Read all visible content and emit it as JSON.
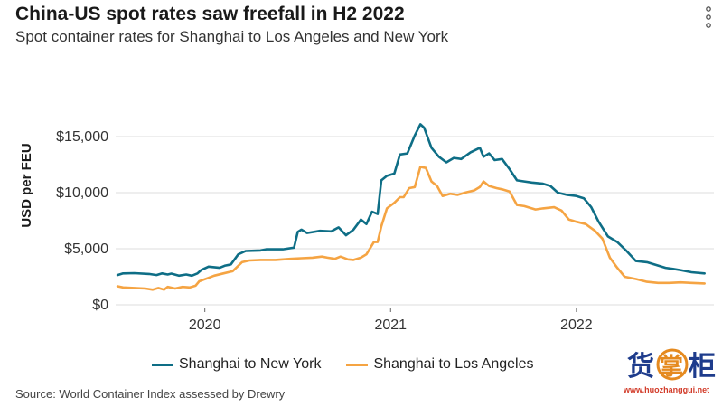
{
  "header": {
    "title": "China-US spot rates saw freefall in H2 2022",
    "subtitle": "Spot container rates for Shanghai to Los Angeles and New York"
  },
  "menu": {
    "icon": "vertical-dots-icon"
  },
  "watermark": {
    "text": "www.huozhanggui.net",
    "logo": "货掌柜"
  },
  "source": "Source: World Container Index assessed by Drewry",
  "colors": {
    "new_york": "#0e6e86",
    "los_angeles": "#f5a443",
    "gridline": "#dddddd",
    "text": "#333333"
  },
  "chart_data": {
    "type": "line",
    "title": "China-US spot rates saw freefall in H2 2022",
    "subtitle": "Spot container rates for Shanghai to Los Angeles and New York",
    "xlabel": "",
    "ylabel": "USD per FEU",
    "xlim": [
      2019.52,
      2022.74
    ],
    "ylim": [
      0,
      17500
    ],
    "y_ticks": [
      0,
      5000,
      10000,
      15000
    ],
    "y_tick_labels": [
      "$0",
      "$5,000",
      "$10,000",
      "$15,000"
    ],
    "x_ticks": [
      2020,
      2021,
      2022
    ],
    "x_tick_labels": [
      "2020",
      "2021",
      "2022"
    ],
    "grid": "horizontal",
    "legend": "bottom",
    "series": [
      {
        "name": "Shanghai to New York",
        "color": "#0e6e86",
        "points": [
          [
            2019.53,
            2650
          ],
          [
            2019.56,
            2800
          ],
          [
            2019.62,
            2820
          ],
          [
            2019.7,
            2750
          ],
          [
            2019.74,
            2650
          ],
          [
            2019.77,
            2800
          ],
          [
            2019.8,
            2700
          ],
          [
            2019.82,
            2780
          ],
          [
            2019.86,
            2600
          ],
          [
            2019.9,
            2700
          ],
          [
            2019.93,
            2600
          ],
          [
            2019.96,
            2800
          ],
          [
            2019.98,
            3100
          ],
          [
            2020.02,
            3400
          ],
          [
            2020.08,
            3300
          ],
          [
            2020.11,
            3500
          ],
          [
            2020.14,
            3600
          ],
          [
            2020.18,
            4500
          ],
          [
            2020.22,
            4800
          ],
          [
            2020.3,
            4850
          ],
          [
            2020.33,
            4950
          ],
          [
            2020.42,
            4950
          ],
          [
            2020.48,
            5100
          ],
          [
            2020.5,
            6500
          ],
          [
            2020.52,
            6700
          ],
          [
            2020.55,
            6400
          ],
          [
            2020.62,
            6600
          ],
          [
            2020.68,
            6550
          ],
          [
            2020.72,
            6900
          ],
          [
            2020.76,
            6200
          ],
          [
            2020.8,
            6700
          ],
          [
            2020.84,
            7600
          ],
          [
            2020.87,
            7200
          ],
          [
            2020.9,
            8300
          ],
          [
            2020.93,
            8100
          ],
          [
            2020.95,
            11100
          ],
          [
            2020.98,
            11500
          ],
          [
            2021.02,
            11700
          ],
          [
            2021.05,
            13400
          ],
          [
            2021.09,
            13500
          ],
          [
            2021.13,
            15100
          ],
          [
            2021.16,
            16100
          ],
          [
            2021.18,
            15800
          ],
          [
            2021.22,
            14000
          ],
          [
            2021.26,
            13200
          ],
          [
            2021.3,
            12700
          ],
          [
            2021.34,
            13100
          ],
          [
            2021.38,
            13000
          ],
          [
            2021.43,
            13600
          ],
          [
            2021.48,
            14000
          ],
          [
            2021.5,
            13200
          ],
          [
            2021.53,
            13500
          ],
          [
            2021.56,
            12900
          ],
          [
            2021.6,
            13000
          ],
          [
            2021.64,
            12100
          ],
          [
            2021.68,
            11100
          ],
          [
            2021.72,
            11000
          ],
          [
            2021.76,
            10900
          ],
          [
            2021.82,
            10800
          ],
          [
            2021.86,
            10600
          ],
          [
            2021.9,
            10000
          ],
          [
            2021.95,
            9800
          ],
          [
            2022.0,
            9700
          ],
          [
            2022.04,
            9500
          ],
          [
            2022.08,
            8700
          ],
          [
            2022.12,
            7400
          ],
          [
            2022.17,
            6100
          ],
          [
            2022.22,
            5600
          ],
          [
            2022.27,
            4800
          ],
          [
            2022.32,
            3900
          ],
          [
            2022.38,
            3800
          ],
          [
            2022.42,
            3600
          ],
          [
            2022.48,
            3300
          ],
          [
            2022.52,
            3200
          ],
          [
            2022.56,
            3100
          ],
          [
            2022.62,
            2900
          ],
          [
            2022.69,
            2800
          ]
        ]
      },
      {
        "name": "Shanghai to Los Angeles",
        "color": "#f5a443",
        "points": [
          [
            2019.53,
            1650
          ],
          [
            2019.56,
            1550
          ],
          [
            2019.62,
            1500
          ],
          [
            2019.68,
            1450
          ],
          [
            2019.72,
            1350
          ],
          [
            2019.75,
            1500
          ],
          [
            2019.78,
            1350
          ],
          [
            2019.8,
            1600
          ],
          [
            2019.84,
            1450
          ],
          [
            2019.88,
            1600
          ],
          [
            2019.92,
            1550
          ],
          [
            2019.95,
            1700
          ],
          [
            2019.97,
            2100
          ],
          [
            2020.02,
            2400
          ],
          [
            2020.05,
            2600
          ],
          [
            2020.1,
            2800
          ],
          [
            2020.15,
            3000
          ],
          [
            2020.2,
            3800
          ],
          [
            2020.24,
            3950
          ],
          [
            2020.3,
            4000
          ],
          [
            2020.38,
            4000
          ],
          [
            2020.46,
            4100
          ],
          [
            2020.52,
            4150
          ],
          [
            2020.58,
            4200
          ],
          [
            2020.63,
            4300
          ],
          [
            2020.66,
            4200
          ],
          [
            2020.7,
            4100
          ],
          [
            2020.73,
            4300
          ],
          [
            2020.77,
            4050
          ],
          [
            2020.8,
            4000
          ],
          [
            2020.84,
            4200
          ],
          [
            2020.87,
            4500
          ],
          [
            2020.91,
            5600
          ],
          [
            2020.93,
            5600
          ],
          [
            2020.95,
            7000
          ],
          [
            2020.98,
            8600
          ],
          [
            2021.02,
            9100
          ],
          [
            2021.05,
            9600
          ],
          [
            2021.07,
            9600
          ],
          [
            2021.1,
            10400
          ],
          [
            2021.13,
            10500
          ],
          [
            2021.16,
            12300
          ],
          [
            2021.19,
            12200
          ],
          [
            2021.22,
            11000
          ],
          [
            2021.25,
            10600
          ],
          [
            2021.28,
            9700
          ],
          [
            2021.32,
            9900
          ],
          [
            2021.36,
            9800
          ],
          [
            2021.4,
            10000
          ],
          [
            2021.45,
            10200
          ],
          [
            2021.48,
            10500
          ],
          [
            2021.5,
            11000
          ],
          [
            2021.53,
            10600
          ],
          [
            2021.57,
            10400
          ],
          [
            2021.6,
            10300
          ],
          [
            2021.64,
            10100
          ],
          [
            2021.68,
            8900
          ],
          [
            2021.72,
            8800
          ],
          [
            2021.78,
            8500
          ],
          [
            2021.82,
            8600
          ],
          [
            2021.88,
            8700
          ],
          [
            2021.92,
            8400
          ],
          [
            2021.96,
            7600
          ],
          [
            2022.0,
            7400
          ],
          [
            2022.05,
            7200
          ],
          [
            2022.1,
            6600
          ],
          [
            2022.14,
            5900
          ],
          [
            2022.18,
            4200
          ],
          [
            2022.22,
            3300
          ],
          [
            2022.26,
            2500
          ],
          [
            2022.32,
            2300
          ],
          [
            2022.38,
            2050
          ],
          [
            2022.44,
            1950
          ],
          [
            2022.5,
            1950
          ],
          [
            2022.56,
            2000
          ],
          [
            2022.62,
            1950
          ],
          [
            2022.69,
            1900
          ]
        ]
      }
    ]
  }
}
